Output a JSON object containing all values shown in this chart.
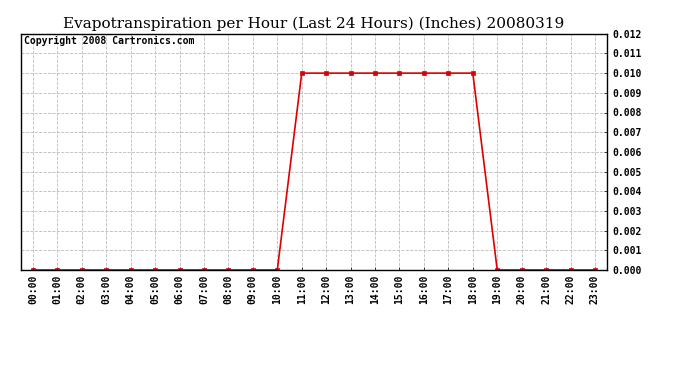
{
  "title": "Evapotranspiration per Hour (Last 24 Hours) (Inches) 20080319",
  "copyright_text": "Copyright 2008 Cartronics.com",
  "hours": [
    0,
    1,
    2,
    3,
    4,
    5,
    6,
    7,
    8,
    9,
    10,
    11,
    12,
    13,
    14,
    15,
    16,
    17,
    18,
    19,
    20,
    21,
    22,
    23
  ],
  "values": [
    0.0,
    0.0,
    0.0,
    0.0,
    0.0,
    0.0,
    0.0,
    0.0,
    0.0,
    0.0,
    0.0,
    0.01,
    0.01,
    0.01,
    0.01,
    0.01,
    0.01,
    0.01,
    0.01,
    0.0,
    0.0,
    0.0,
    0.0,
    0.0
  ],
  "line_color": "#dd0000",
  "marker": "s",
  "marker_size": 3,
  "ylim": [
    0.0,
    0.012
  ],
  "yticks": [
    0.0,
    0.001,
    0.002,
    0.003,
    0.004,
    0.005,
    0.006,
    0.007,
    0.008,
    0.009,
    0.01,
    0.011,
    0.012
  ],
  "xlabels": [
    "00:00",
    "01:00",
    "02:00",
    "03:00",
    "04:00",
    "05:00",
    "06:00",
    "07:00",
    "08:00",
    "09:00",
    "10:00",
    "11:00",
    "12:00",
    "13:00",
    "14:00",
    "15:00",
    "16:00",
    "17:00",
    "18:00",
    "19:00",
    "20:00",
    "21:00",
    "22:00",
    "23:00"
  ],
  "background_color": "#ffffff",
  "plot_bg_color": "#ffffff",
  "grid_color": "#bbbbbb",
  "title_fontsize": 11,
  "copyright_fontsize": 7,
  "tick_fontsize": 7,
  "ytick_fontsize": 7
}
